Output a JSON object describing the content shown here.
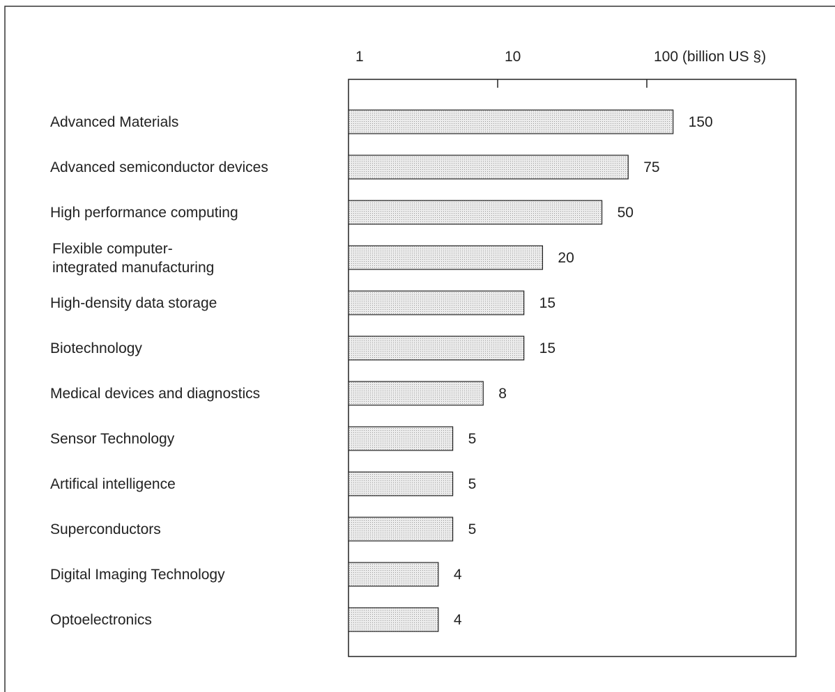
{
  "chart_data": {
    "type": "bar",
    "orientation": "horizontal",
    "x_scale": "log",
    "xlim": [
      1,
      200
    ],
    "x_ticks": [
      {
        "value": 1,
        "label": "1"
      },
      {
        "value": 10,
        "label": "10"
      },
      {
        "value": 100,
        "label": "100 (billion US §)"
      }
    ],
    "categories": [
      [
        "Advanced Materials"
      ],
      [
        "Advanced semiconductor devices"
      ],
      [
        "High performance computing"
      ],
      [
        "Flexible computer-",
        "integrated manufacturing"
      ],
      [
        "High-density data storage"
      ],
      [
        "Biotechnology"
      ],
      [
        "Medical devices and diagnostics"
      ],
      [
        "Sensor Technology"
      ],
      [
        "Artifical intelligence"
      ],
      [
        "Superconductors"
      ],
      [
        "Digital Imaging Technology"
      ],
      [
        "Optoelectronics"
      ]
    ],
    "values": [
      150,
      75,
      50,
      20,
      15,
      15,
      8,
      5,
      5,
      5,
      4,
      4
    ],
    "value_labels": [
      "150",
      "75",
      "50",
      "20",
      "15",
      "15",
      "8",
      "5",
      "5",
      "5",
      "4",
      "4"
    ],
    "bar_fill": "#d9d9d9",
    "bar_stroke": "#222222",
    "grid": false,
    "legend": "none"
  }
}
